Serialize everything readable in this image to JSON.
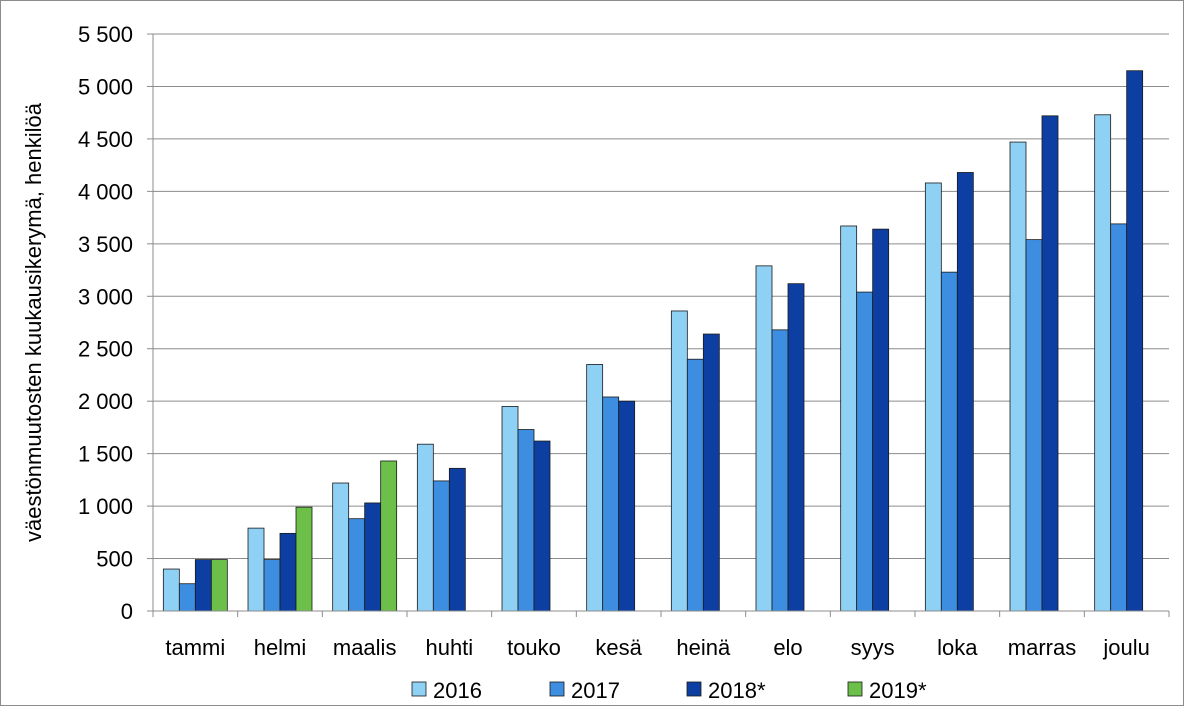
{
  "chart_data": {
    "type": "bar",
    "ylabel": "väestönmuutosten kuukausikerymä, henkilöä",
    "xlabel": "",
    "ylim": [
      0,
      5500
    ],
    "y_ticks": [
      0,
      500,
      1000,
      1500,
      2000,
      2500,
      3000,
      3500,
      4000,
      4500,
      5000,
      5500
    ],
    "y_tick_labels": [
      "0",
      "500",
      "1 000",
      "1 500",
      "2 000",
      "2 500",
      "3 000",
      "3 500",
      "4 000",
      "4 500",
      "5 000",
      "5 500"
    ],
    "categories": [
      "tammi",
      "helmi",
      "maalis",
      "huhti",
      "touko",
      "kesä",
      "heinä",
      "elo",
      "syys",
      "loka",
      "marras",
      "joulu"
    ],
    "series": [
      {
        "name": "2016",
        "color": "#8fd0f5",
        "values": [
          400,
          790,
          1220,
          1590,
          1950,
          2350,
          2860,
          3290,
          3670,
          4080,
          4470,
          4730
        ]
      },
      {
        "name": "2017",
        "color": "#3d8ee0",
        "values": [
          260,
          490,
          880,
          1240,
          1730,
          2040,
          2400,
          2680,
          3040,
          3230,
          3540,
          3690
        ]
      },
      {
        "name": "2018*",
        "color": "#0d3fa3",
        "values": [
          490,
          740,
          1030,
          1360,
          1620,
          2000,
          2640,
          3120,
          3640,
          4180,
          4720,
          5150
        ]
      },
      {
        "name": "2019*",
        "color": "#6cc04a",
        "values": [
          490,
          990,
          1430,
          null,
          null,
          null,
          null,
          null,
          null,
          null,
          null,
          null
        ]
      }
    ],
    "grid": true,
    "legend_position": "bottom"
  }
}
